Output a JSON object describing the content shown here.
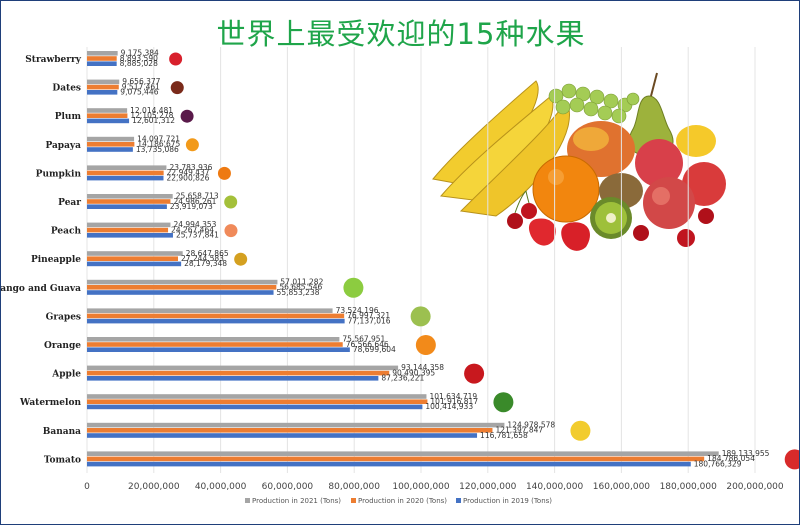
{
  "title": "世界上最受欢迎的15种水果",
  "colors": {
    "y2021": "#a5a5a5",
    "y2020": "#ed7d31",
    "y2019": "#4472c4",
    "title": "#1fa54a"
  },
  "chart_data": {
    "type": "bar",
    "orientation": "horizontal",
    "title": "世界上最受欢迎的15种水果",
    "xlim": [
      0,
      200000000
    ],
    "xticks": [
      "0",
      "20,000,000",
      "40,000,000",
      "60,000,000",
      "80,000,000",
      "100,000,000",
      "120,000,000",
      "140,000,000",
      "160,000,000",
      "180,000,000",
      "200,000,000"
    ],
    "xtick_values": [
      0,
      20000000,
      40000000,
      60000000,
      80000000,
      100000000,
      120000000,
      140000000,
      160000000,
      180000000,
      200000000
    ],
    "legend_position": "bottom",
    "categories": [
      "Strawberry",
      "Dates",
      "Plum",
      "Papaya",
      "Pumpkin",
      "Pear",
      "Peach",
      "Pineapple",
      "ango and Guava",
      "Grapes",
      "Orange",
      "Apple",
      "Watermelon",
      "Banana",
      "Tomato"
    ],
    "series": [
      {
        "name": "Production in 2021 (Tons)",
        "color_key": "y2021",
        "values": [
          9175384,
          9656377,
          12014481,
          14097721,
          23783936,
          25658713,
          24994353,
          28647865,
          57011282,
          73524196,
          75567951,
          93144358,
          101634719,
          124978578,
          189133955
        ],
        "labels": [
          "9,175,384",
          "9,656,377",
          "12,014,481",
          "14,097,721",
          "23,783,936",
          "25,658,713",
          "24,994,353",
          "28,647,865",
          "57,011,282",
          "73,524,196",
          "75,567,951",
          "93,144,358",
          "101,634,719",
          "124,978,578",
          "189,133,955"
        ]
      },
      {
        "name": "Production in 2020 (Tons)",
        "color_key": "y2020",
        "values": [
          8893590,
          9517461,
          12105278,
          14186675,
          22949437,
          24986261,
          24267464,
          27244583,
          56685546,
          76997321,
          76566646,
          90490395,
          101916817,
          121397847,
          184786054
        ],
        "labels": [
          "8,893,590",
          "9,517,461",
          "12,105,278",
          "14,186,675",
          "22,949,437",
          "24,986,261",
          "24,267,464",
          "27,244,583",
          "56,685,546",
          "76,997,321",
          "76,566,646",
          "90,490,395",
          "101,916,817",
          "121,397,847",
          "184,786,054"
        ]
      },
      {
        "name": "Production in 2019 (Tons)",
        "color_key": "y2019",
        "values": [
          8885028,
          9075446,
          12601312,
          13735086,
          22900826,
          23919073,
          25737841,
          28179348,
          55853238,
          77137016,
          78699604,
          87236221,
          100414933,
          116781658,
          180766329
        ],
        "labels": [
          "8,885,028",
          "9,075,446",
          "12,601,312",
          "13,735,086",
          "22,900,826",
          "23,919,073",
          "25,737,841",
          "28,179,348",
          "55,853,238",
          "77,137,016",
          "78,699,604",
          "87,236,221",
          "100,414,933",
          "116,781,658",
          "180,766,329"
        ]
      }
    ],
    "fruit_icons": [
      "strawberry-icon",
      "dates-icon",
      "plum-icon",
      "papaya-icon",
      "pumpkin-icon",
      "pear-icon",
      "peach-icon",
      "pineapple-icon",
      "guava-icon",
      "grapes-icon",
      "orange-icon",
      "apple-icon",
      "watermelon-icon",
      "banana-icon",
      "tomato-icon"
    ]
  },
  "illustration": "fruit-basket-illustration"
}
